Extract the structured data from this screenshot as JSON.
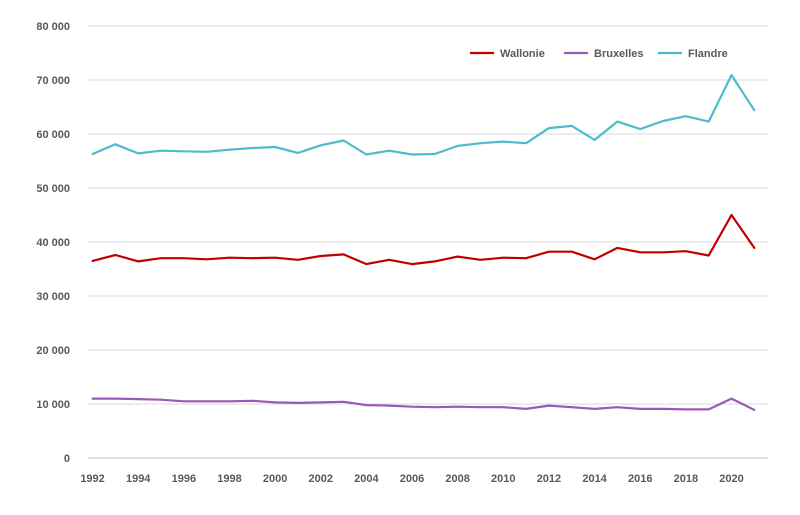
{
  "chart_data": {
    "type": "line",
    "title": "",
    "xlabel": "",
    "ylabel": "",
    "x": [
      1992,
      1993,
      1994,
      1995,
      1996,
      1997,
      1998,
      1999,
      2000,
      2001,
      2002,
      2003,
      2004,
      2005,
      2006,
      2007,
      2008,
      2009,
      2010,
      2011,
      2012,
      2013,
      2014,
      2015,
      2016,
      2017,
      2018,
      2019,
      2020,
      2021
    ],
    "x_tick_labels": [
      "1992",
      "1994",
      "1996",
      "1998",
      "2000",
      "2002",
      "2004",
      "2006",
      "2008",
      "2010",
      "2012",
      "2014",
      "2016",
      "2018",
      "2020"
    ],
    "y_tick_labels": [
      "0",
      "10 000",
      "20 000",
      "30 000",
      "40 000",
      "50 000",
      "60 000",
      "70 000",
      "80 000"
    ],
    "ylim": [
      0,
      80000
    ],
    "grid": true,
    "legend_position": "top-right",
    "series": [
      {
        "name": "Wallonie",
        "color": "#c00000",
        "values": [
          36500,
          37600,
          36400,
          37000,
          37000,
          36800,
          37100,
          37000,
          37100,
          36700,
          37400,
          37700,
          35900,
          36700,
          35900,
          36400,
          37300,
          36700,
          37100,
          37000,
          38200,
          38200,
          36800,
          38900,
          38100,
          38100,
          38300,
          37500,
          45000,
          38900
        ]
      },
      {
        "name": "Bruxelles",
        "color": "#9b59b6",
        "values": [
          11000,
          11000,
          10900,
          10800,
          10500,
          10500,
          10500,
          10600,
          10300,
          10200,
          10300,
          10400,
          9800,
          9700,
          9500,
          9400,
          9500,
          9400,
          9400,
          9100,
          9700,
          9400,
          9100,
          9400,
          9100,
          9100,
          9000,
          9000,
          11000,
          8900
        ]
      },
      {
        "name": "Flandre",
        "color": "#4bbccc",
        "values": [
          56300,
          58100,
          56400,
          56900,
          56800,
          56700,
          57100,
          57400,
          57600,
          56500,
          57900,
          58800,
          56200,
          56900,
          56200,
          56300,
          57800,
          58300,
          58600,
          58300,
          61100,
          61500,
          58900,
          62300,
          60900,
          62400,
          63300,
          62300,
          70900,
          64400
        ]
      }
    ]
  }
}
